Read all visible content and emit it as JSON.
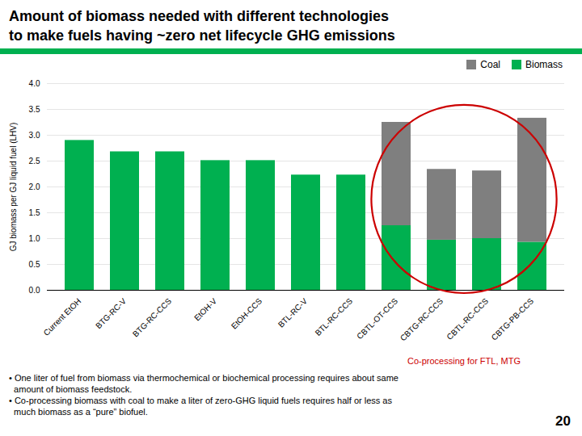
{
  "chart_data": {
    "type": "bar",
    "stacked": true,
    "title": "Amount of biomass needed with different technologies",
    "subtitle": "to make fuels having ~zero net lifecycle GHG emissions",
    "ylabel": "GJ biomass per GJ liquid fuel (LHV)",
    "categories": [
      "Current EtOH",
      "BTG-RC-V",
      "BTG-RC-CCS",
      "EtOH-V",
      "EtOH-CCS",
      "BTL-RC-V",
      "BTL-RC-CCS",
      "CBTL-OT-CCS",
      "CBTG-RC-CCS",
      "CBTL-RC-CCS",
      "CBTG-PB-CCS"
    ],
    "series": [
      {
        "name": "Biomass",
        "color": "#00b050",
        "values": [
          2.9,
          2.68,
          2.68,
          2.51,
          2.51,
          2.23,
          2.23,
          1.25,
          0.97,
          1.0,
          0.93
        ]
      },
      {
        "name": "Coal",
        "color": "#7f7f7f",
        "values": [
          0.0,
          0.0,
          0.0,
          0.0,
          0.0,
          0.0,
          0.0,
          2.0,
          1.37,
          1.31,
          2.4
        ]
      }
    ],
    "ylim": [
      0.0,
      4.0
    ],
    "yticks": [
      {
        "value": 0.0,
        "label": "0.0"
      },
      0.5,
      {
        "value": 1.0,
        "label": "1.0"
      },
      1.5,
      {
        "value": 2.0,
        "label": "2.0"
      },
      2.5,
      {
        "value": 3.0,
        "label": "3.0"
      },
      3.5,
      {
        "value": 4.0,
        "label": "4.0"
      }
    ],
    "grid": true,
    "legend": "upper right",
    "annotations": [
      "Co-processing for FTL, MTG",
      "• One liter of fuel from biomass via thermochemical or biochemical processing requires about same",
      "  amount of biomass feedstock.",
      "• Co-processing biomass with coal to make a liter of zero-GHG liquid fuels requires half or less as",
      "  much biomass as a “pure” biofuel.",
      "20"
    ]
  }
}
